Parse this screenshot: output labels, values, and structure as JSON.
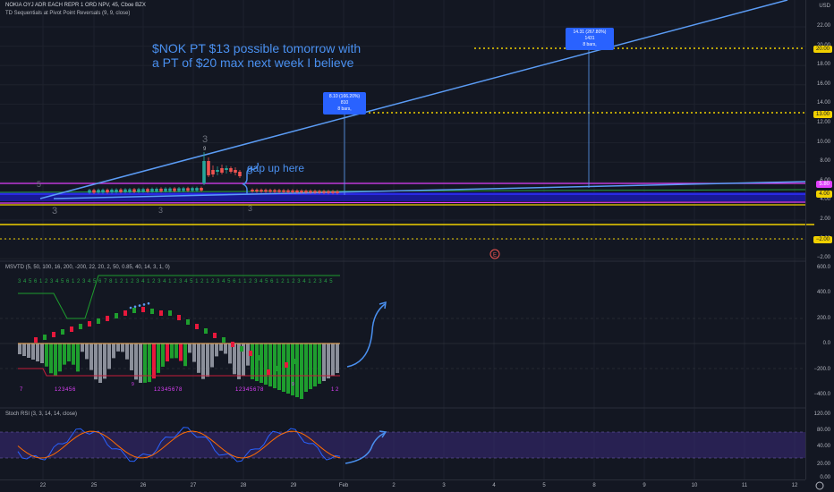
{
  "header": {
    "symbol_line": "NOKIA OYJ ADR EACH REPR 1 ORD NPV, 45, Cboe BZX",
    "indicator_line": "TD Sequentials at Pivot Point Reversals (9, 9, close)"
  },
  "price_axis": {
    "currency": "USD",
    "ticks": [
      "22.00",
      "20.00",
      "18.00",
      "16.00",
      "14.00",
      "12.00",
      "10.00",
      "8.00",
      "6.00",
      "4.00",
      "2.00",
      "0.00",
      "−2.00"
    ],
    "tags": [
      {
        "label": "20.00",
        "color": "#f0d000"
      },
      {
        "label": "13.00",
        "color": "#f0d000"
      },
      {
        "label": "5.80",
        "color": "#e040fb"
      },
      {
        "label": "4.00",
        "color": "#f0d000"
      },
      {
        "label": "−2.00",
        "color": "#f0d000"
      }
    ]
  },
  "annotations": {
    "main_text_line1": "$NOK  PT $13 possible tomorrow with",
    "main_text_line2": "a PT of $20 max next week I believe",
    "gap_text": "gap up here",
    "callout_1_line1": "8.10 (166.20%) 810",
    "callout_1_line2": "8 bars,",
    "callout_2_line1": "14.31 (267.80%) 1431",
    "callout_2_line2": "8 bars,"
  },
  "msvtd": {
    "legend": "MSVTD (5, 50, 100, 16, 200, -200, 22, 20, 2, 50, 0.85, 40, 14, 3, 1, 0)",
    "ticks": [
      "600.0",
      "400.0",
      "200.0",
      "0.0",
      "−200.0",
      "−400.0"
    ],
    "top_sequence": "3 4 5 6 1 2 3 4 5 6 1 2 3 4 5 6 7 8 1 2 1 2 3 4 1 2 3 4 1 2 3 4 5 1 2 1 2 3 4 5 6 1 1 2 3 4 5 6 1 2 1 2 3 4 1 2 3 4 5",
    "bottom_sequence_1": "7",
    "bottom_sequence_2": "1 2 3 4 5 6",
    "bottom_sequence_3": "1 2 3 4 5 6 7 8",
    "bottom_sequence_4": "1 2 3 4 5 6 7 8",
    "bottom_sequence_5": "1 2",
    "small_9": "9",
    "small_9b": "9"
  },
  "stoch": {
    "legend": "Stoch RSI (3, 3, 14, 14, close)",
    "ticks": [
      "120.00",
      "80.00",
      "40.00",
      "20.00",
      "0.00"
    ]
  },
  "time_axis": {
    "labels": [
      "22",
      "25",
      "26",
      "27",
      "28",
      "29",
      "Feb",
      "2",
      "3",
      "4",
      "5",
      "8",
      "9",
      "10",
      "11",
      "12"
    ]
  },
  "seq_labels": {
    "s9": "9",
    "s3a": "3",
    "s3b": "3",
    "s3c": "3",
    "s3d": "3",
    "s5": "5"
  },
  "colors": {
    "background": "#131722",
    "up": "#26a69a",
    "down": "#ef5350",
    "trendline": "#5b9cf5",
    "magenta": "#e040fb",
    "yellow": "#f0d000",
    "blue_band": "#1a1aa8",
    "green_bar": "#1e9e2e",
    "red_bar": "#e8183c",
    "gray_bar": "#8b8f9a",
    "stoch_band": "#3b2a7a"
  }
}
